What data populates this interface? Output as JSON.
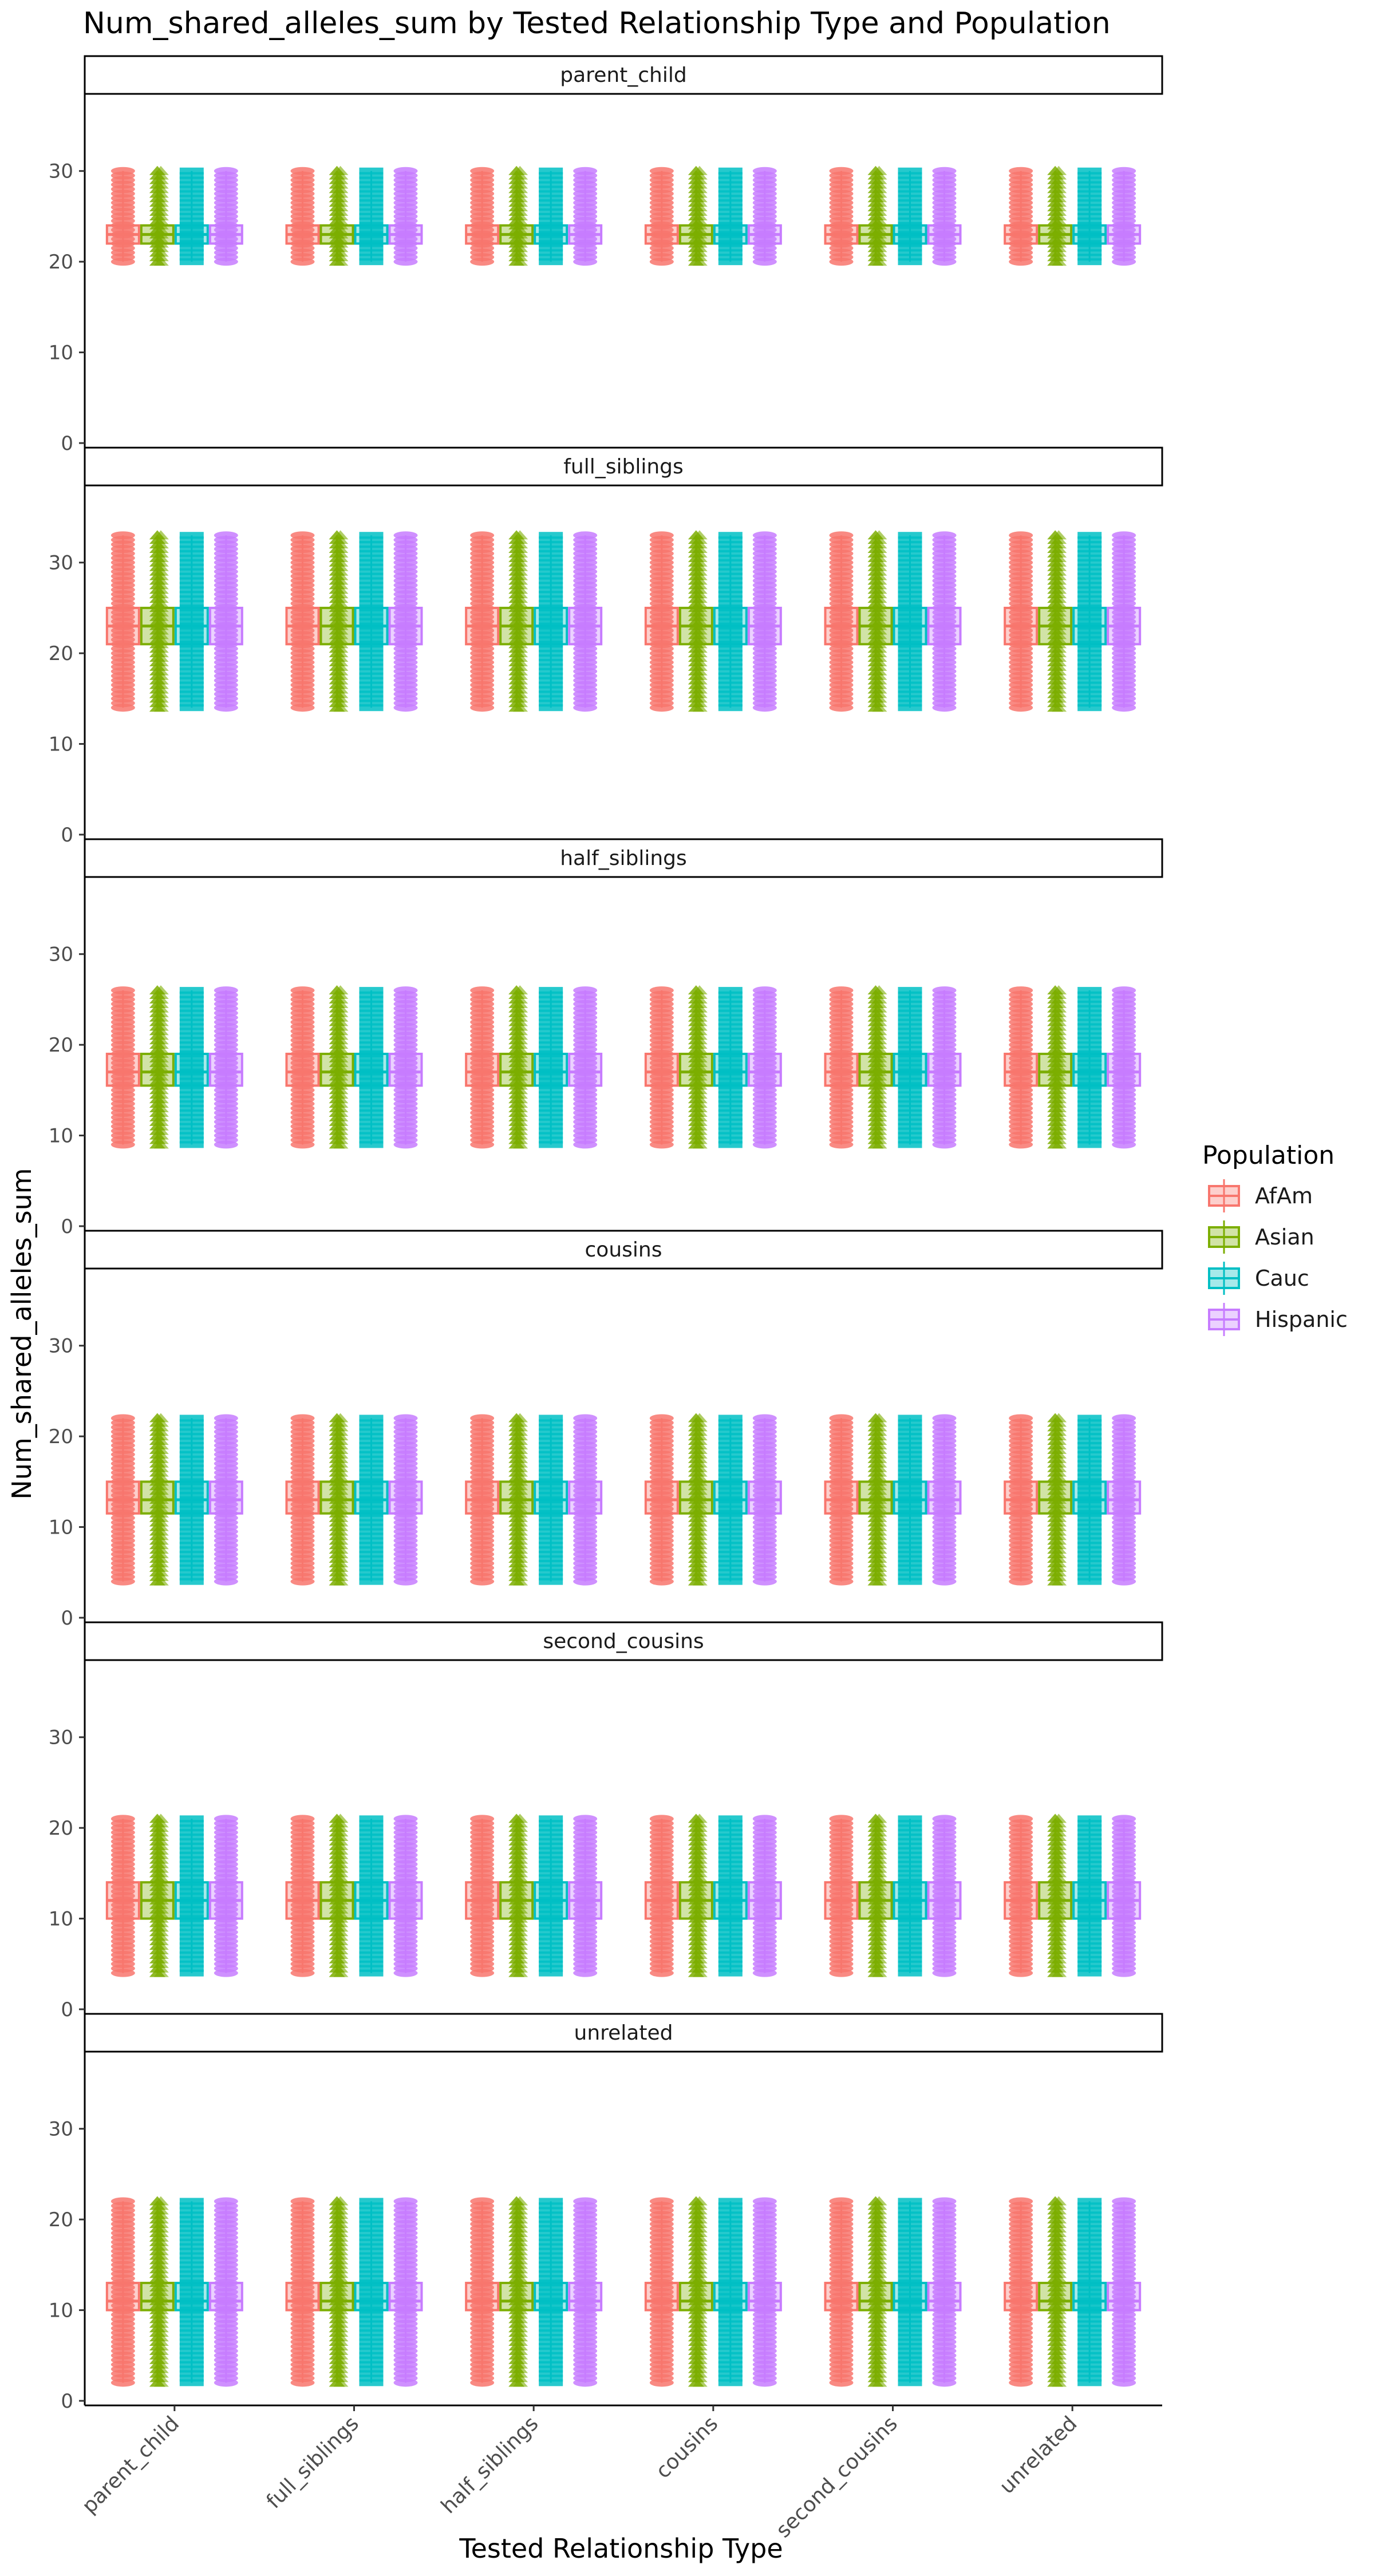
{
  "chart_data": {
    "type": "box",
    "title": "Num_shared_alleles_sum by Tested Relationship Type and Population",
    "xlabel": "Tested Relationship Type",
    "ylabel": "Num_shared_alleles_sum",
    "ylim": [
      0,
      38
    ],
    "y_ticks": [
      0,
      10,
      20,
      30
    ],
    "categories": [
      "parent_child",
      "full_siblings",
      "half_siblings",
      "cousins",
      "second_cousins",
      "unrelated"
    ],
    "facets": [
      "parent_child",
      "full_siblings",
      "half_siblings",
      "cousins",
      "second_cousins",
      "unrelated"
    ],
    "legend": {
      "title": "Population",
      "placement": "right",
      "entries": [
        {
          "name": "AfAm",
          "color": "#F8766D"
        },
        {
          "name": "Asian",
          "color": "#7CAE00"
        },
        {
          "name": "Cauc",
          "color": "#00BFC4"
        },
        {
          "name": "Hispanic",
          "color": "#C77CFF"
        }
      ]
    },
    "facet_summaries": [
      {
        "facet": "parent_child",
        "q1": 22,
        "median": 23,
        "q3": 24,
        "lo": 20,
        "hi": 30
      },
      {
        "facet": "full_siblings",
        "q1": 21,
        "median": 23,
        "q3": 25,
        "lo": 14,
        "hi": 33
      },
      {
        "facet": "half_siblings",
        "q1": 15.5,
        "median": 17,
        "q3": 19,
        "lo": 9,
        "hi": 26
      },
      {
        "facet": "cousins",
        "q1": 11.5,
        "median": 13,
        "q3": 15,
        "lo": 4,
        "hi": 22
      },
      {
        "facet": "second_cousins",
        "q1": 10,
        "median": 12,
        "q3": 14,
        "lo": 4,
        "hi": 21
      },
      {
        "facet": "unrelated",
        "q1": 10,
        "median": 11,
        "q3": 13,
        "lo": 2,
        "hi": 22
      }
    ]
  }
}
